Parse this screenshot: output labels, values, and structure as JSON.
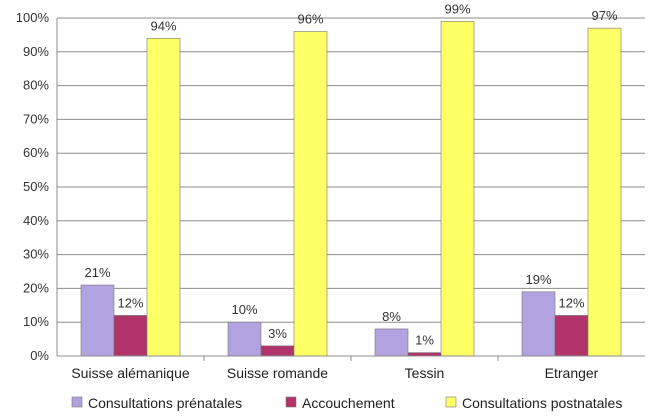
{
  "chart_data": {
    "type": "bar",
    "categories": [
      "Suisse alémanique",
      "Suisse romande",
      "Tessin",
      "Etranger"
    ],
    "series": [
      {
        "name": "Consultations prénatales",
        "color": "#b3a2e0",
        "values": [
          21,
          10,
          8,
          19
        ],
        "labels": [
          "21%",
          "10%",
          "8%",
          "19%"
        ]
      },
      {
        "name": "Accouchement",
        "color": "#b0336a",
        "values": [
          12,
          3,
          1,
          12
        ],
        "labels": [
          "12%",
          "3%",
          "1%",
          "12%"
        ]
      },
      {
        "name": "Consultations postnatales",
        "color": "#ffff66",
        "values": [
          94,
          96,
          99,
          97
        ],
        "labels": [
          "94%",
          "96%",
          "99%",
          "97%"
        ]
      }
    ],
    "ylim": [
      0,
      100
    ],
    "yticks": [
      0,
      10,
      20,
      30,
      40,
      50,
      60,
      70,
      80,
      90,
      100
    ],
    "ytick_labels": [
      "0%",
      "10%",
      "20%",
      "30%",
      "40%",
      "50%",
      "60%",
      "70%",
      "80%",
      "90%",
      "100%"
    ],
    "grid": true,
    "legend_position": "bottom",
    "title": "",
    "xlabel": "",
    "ylabel": ""
  }
}
